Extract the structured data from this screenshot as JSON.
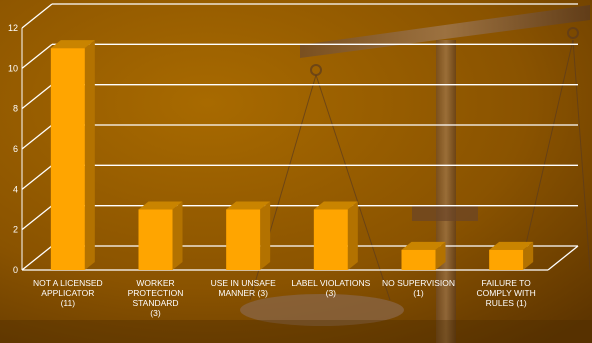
{
  "chart_data": {
    "type": "bar",
    "categories": [
      "NOT A LICENSED\nAPPLICATOR\n(11)",
      "WORKER\nPROTECTION\nSTANDARD\n(3)",
      "USE IN UNSAFE\nMANNER        (3)",
      "LABEL VIOLATIONS\n(3)",
      "NO SUPERVISION\n(1)",
      "FAILURE TO\nCOMPLY WITH\nRULES                 (1)"
    ],
    "values": [
      11,
      3,
      3,
      3,
      1,
      1
    ],
    "yticks": [
      "0",
      "2",
      "4",
      "6",
      "8",
      "10",
      "12"
    ],
    "ylim": [
      0,
      12
    ],
    "grid": true,
    "bar_color": "#ffa500",
    "grid_color": "#ffffff",
    "background_color": "#8a5300"
  }
}
